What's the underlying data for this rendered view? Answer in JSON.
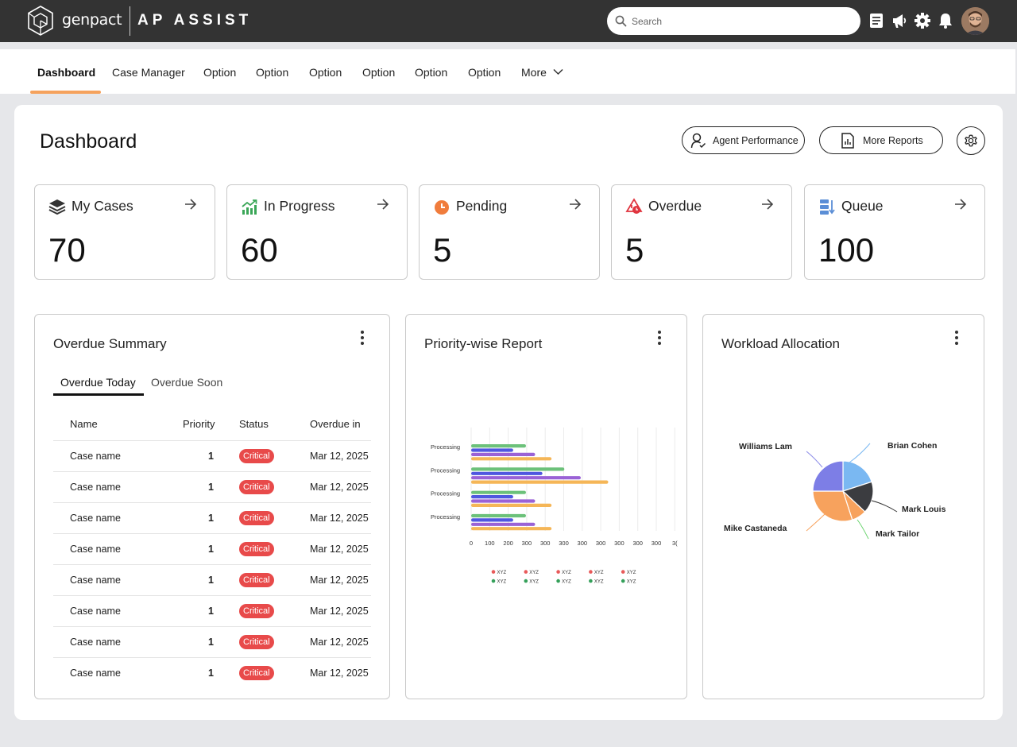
{
  "header": {
    "brand": "genpact",
    "app_title": "AP ASSIST",
    "search_placeholder": "Search",
    "icons": [
      "notes-icon",
      "megaphone-icon",
      "gear-icon",
      "bell-icon"
    ]
  },
  "nav": {
    "items": [
      "Dashboard",
      "Case Manager",
      "Option",
      "Option",
      "Option",
      "Option",
      "Option",
      "Option"
    ],
    "more_label": "More",
    "active": "Dashboard",
    "accent": "#f5a25d"
  },
  "page": {
    "title": "Dashboard",
    "agent_perf_label": "Agent Performance",
    "more_reports_label": "More Reports"
  },
  "stats": [
    {
      "label": "My Cases",
      "value": "70",
      "icon": "layers-icon"
    },
    {
      "label": "In Progress",
      "value": "60",
      "icon": "growth-chart-icon"
    },
    {
      "label": "Pending",
      "value": "5",
      "icon": "clock-icon"
    },
    {
      "label": "Overdue",
      "value": "5",
      "icon": "overdue-alert-icon"
    },
    {
      "label": "Queue",
      "value": "100",
      "icon": "queue-icon"
    }
  ],
  "overdue_summary": {
    "title": "Overdue Summary",
    "tabs": [
      "Overdue Today",
      "Overdue Soon"
    ],
    "active_tab": "Overdue Today",
    "columns": [
      "Name",
      "Priority",
      "Status",
      "Overdue in"
    ],
    "rows": [
      {
        "name": "Case name",
        "priority": "1",
        "status": "Critical",
        "overdue": "Mar 12, 2025"
      },
      {
        "name": "Case name",
        "priority": "1",
        "status": "Critical",
        "overdue": "Mar 12, 2025"
      },
      {
        "name": "Case name",
        "priority": "1",
        "status": "Critical",
        "overdue": "Mar 12, 2025"
      },
      {
        "name": "Case name",
        "priority": "1",
        "status": "Critical",
        "overdue": "Mar 12, 2025"
      },
      {
        "name": "Case name",
        "priority": "1",
        "status": "Critical",
        "overdue": "Mar 12, 2025"
      },
      {
        "name": "Case name",
        "priority": "1",
        "status": "Critical",
        "overdue": "Mar 12, 2025"
      },
      {
        "name": "Case name",
        "priority": "1",
        "status": "Critical",
        "overdue": "Mar 12, 2025"
      },
      {
        "name": "Case name",
        "priority": "1",
        "status": "Critical",
        "overdue": "Mar 12, 2025"
      }
    ]
  },
  "priority_report": {
    "title": "Priority-wise Report"
  },
  "workload": {
    "title": "Workload Allocation"
  },
  "chart_data": [
    {
      "type": "bar",
      "orientation": "horizontal",
      "categories": [
        "Processing",
        "Processing",
        "Processing",
        "Processing"
      ],
      "x_tick_labels": [
        "0",
        "100",
        "200",
        "300",
        "300",
        "300",
        "300",
        "300",
        "300",
        "300",
        "300",
        "3("
      ],
      "series": [
        {
          "values": [
            150,
            255,
            150,
            150
          ],
          "color": "#6cc17a"
        },
        {
          "values": [
            115,
            195,
            115,
            115
          ],
          "color": "#4f57e0"
        },
        {
          "values": [
            175,
            300,
            175,
            175
          ],
          "color": "#9a62d6"
        },
        {
          "values": [
            220,
            375,
            220,
            220
          ],
          "color": "#f5b657"
        }
      ],
      "legend": [
        {
          "label": "XYZ",
          "color": "#e85a5a"
        },
        {
          "label": "XYZ",
          "color": "#e85a5a"
        },
        {
          "label": "XYZ",
          "color": "#e85a5a"
        },
        {
          "label": "XYZ",
          "color": "#e85a5a"
        },
        {
          "label": "XYZ",
          "color": "#e85a5a"
        },
        {
          "label": "XYZ",
          "color": "#35a05a"
        },
        {
          "label": "XYZ",
          "color": "#35a05a"
        },
        {
          "label": "XYZ",
          "color": "#35a05a"
        },
        {
          "label": "XYZ",
          "color": "#35a05a"
        },
        {
          "label": "XYZ",
          "color": "#35a05a"
        }
      ],
      "grid": true,
      "legend_position": "bottom"
    },
    {
      "type": "pie",
      "slices": [
        {
          "label": "Brian Cohen",
          "value": 20,
          "color": "#7ab8f2",
          "leader": "#7ab8f2"
        },
        {
          "label": "Mark Louis",
          "value": 17,
          "color": "#3b3c40",
          "leader": "#333333"
        },
        {
          "label": "Mark Tailor",
          "value": 8,
          "color": "#f7a25d",
          "leader": "#6ad46e"
        },
        {
          "label": "Mike Castaneda",
          "value": 30,
          "color": "#f7a25d",
          "leader": "#f7a25d"
        },
        {
          "label": "Williams Lam",
          "value": 25,
          "color": "#7d7ee6",
          "leader": "#8f8fe8"
        }
      ]
    }
  ]
}
